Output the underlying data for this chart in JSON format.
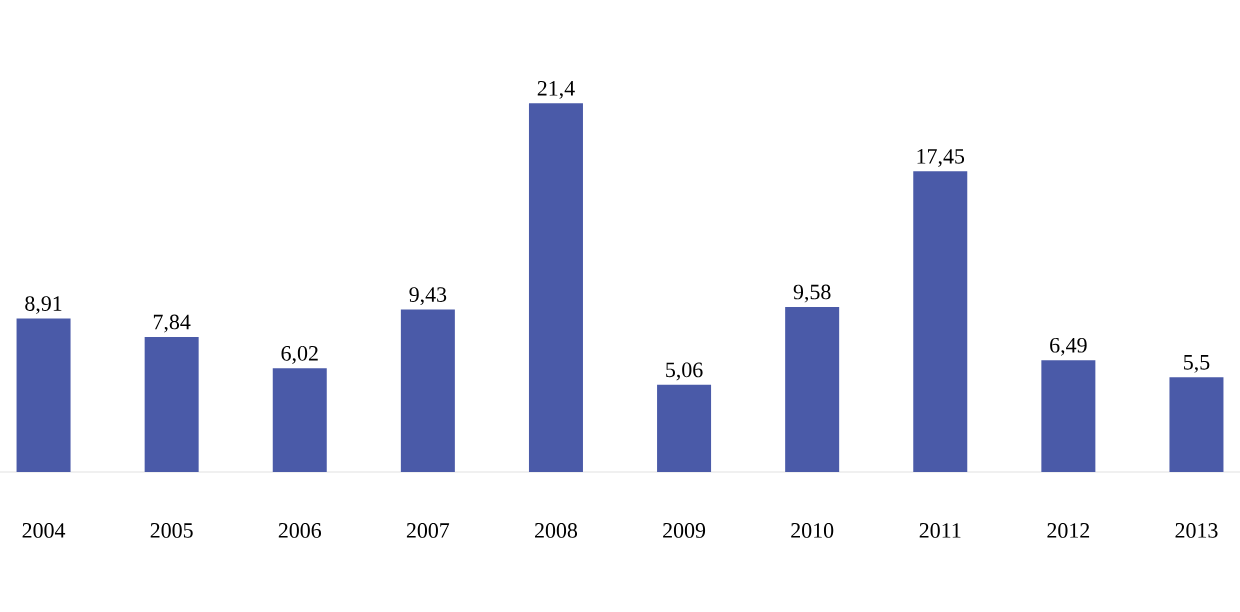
{
  "chart_data": {
    "type": "bar",
    "categories": [
      "2004",
      "2005",
      "2006",
      "2007",
      "2008",
      "2009",
      "2010",
      "2011",
      "2012",
      "2013"
    ],
    "values": [
      8.91,
      7.84,
      6.02,
      9.43,
      21.4,
      5.06,
      9.58,
      17.45,
      6.49,
      5.5
    ],
    "value_labels": [
      "8,91",
      "7,84",
      "6,02",
      "9,43",
      "21,4",
      "5,06",
      "9,58",
      "17,45",
      "6,49",
      "5,5"
    ],
    "color": "#4a5aa8"
  }
}
